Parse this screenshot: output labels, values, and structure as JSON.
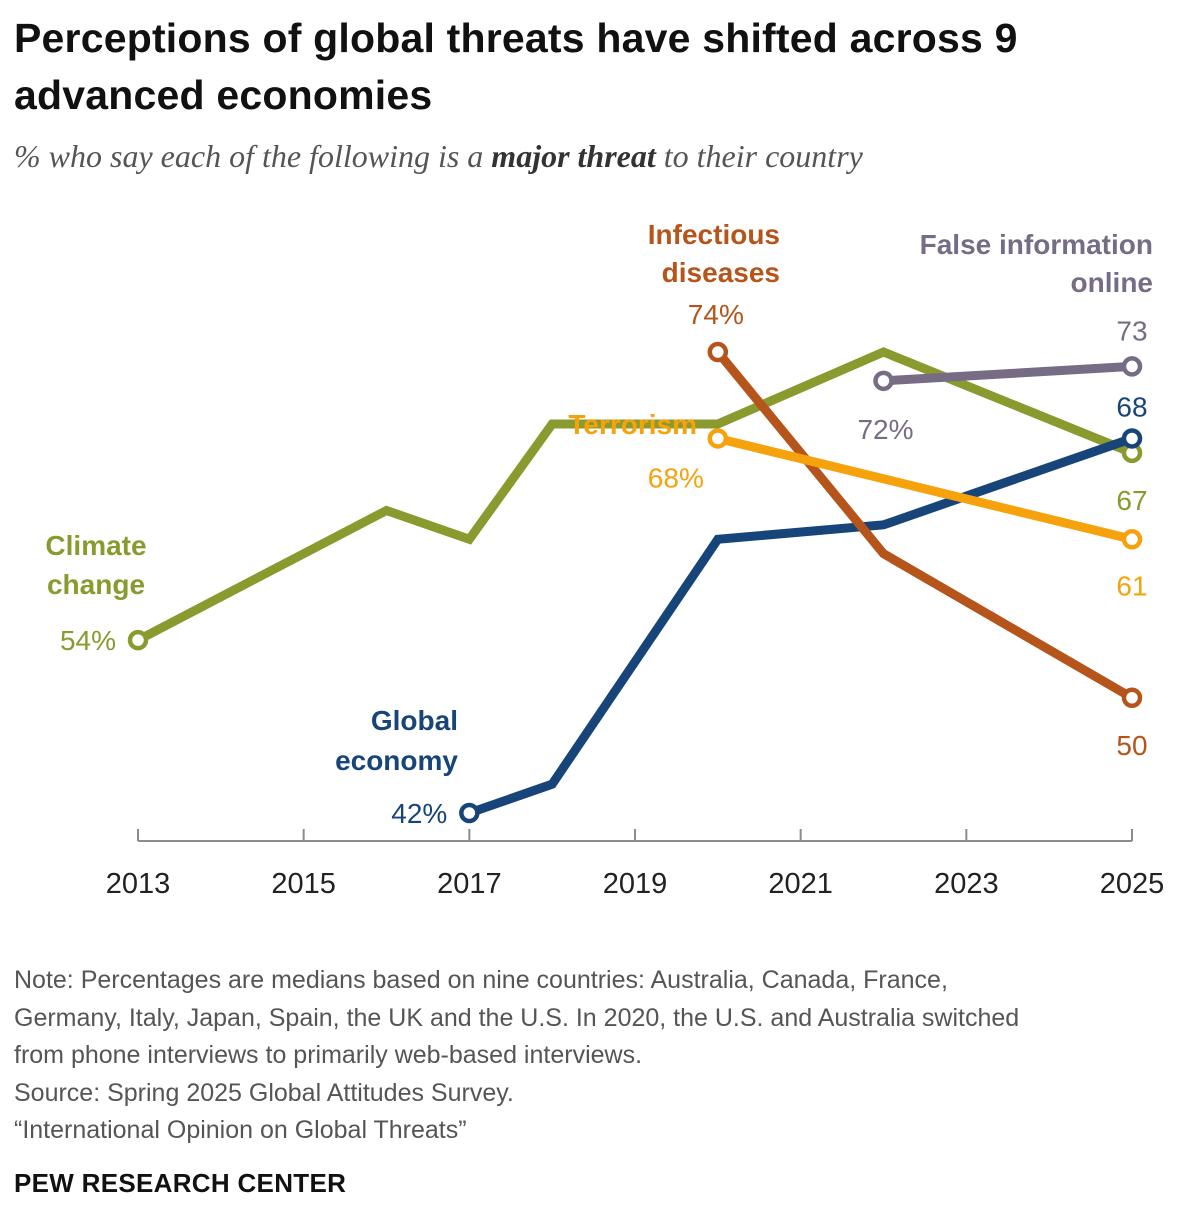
{
  "title": "Perceptions of global threats have shifted across 9 advanced economies",
  "subtitle": {
    "prefix": "% who say each of the following is a ",
    "emphasis": "major threat",
    "suffix": " to their country"
  },
  "chart_data": {
    "type": "line",
    "x_ticks": [
      2013,
      2015,
      2017,
      2019,
      2021,
      2023,
      2025
    ],
    "xlim": [
      2013,
      2025
    ],
    "ylim": [
      40,
      80
    ],
    "grid": false,
    "legend": "direct labels on lines",
    "series": [
      {
        "name": "Climate change",
        "name_lines": [
          "Climate",
          "change"
        ],
        "color": "#8a9a2e",
        "points": [
          [
            2013,
            54
          ],
          [
            2015,
            60
          ],
          [
            2016,
            63
          ],
          [
            2017,
            61
          ],
          [
            2018,
            69
          ],
          [
            2020,
            69
          ],
          [
            2022,
            74
          ],
          [
            2025,
            67
          ]
        ],
        "start_label": "54%",
        "end_label": "67",
        "marker_start": true,
        "marker_end": true
      },
      {
        "name": "Global economy",
        "name_lines": [
          "Global",
          "economy"
        ],
        "color": "#17457a",
        "points": [
          [
            2017,
            42
          ],
          [
            2018,
            44
          ],
          [
            2020,
            61
          ],
          [
            2022,
            62
          ],
          [
            2025,
            68
          ]
        ],
        "start_label": "42%",
        "end_label": "68",
        "marker_start": true,
        "marker_end": true
      },
      {
        "name": "Infectious diseases",
        "name_lines": [
          "Infectious",
          "diseases"
        ],
        "color": "#b5541b",
        "points": [
          [
            2020,
            74
          ],
          [
            2022,
            60
          ],
          [
            2025,
            50
          ]
        ],
        "start_label": "74%",
        "end_label": "50",
        "marker_start": true,
        "marker_end": true
      },
      {
        "name": "Terrorism",
        "name_lines": [
          "Terrorism"
        ],
        "color": "#f5a20c",
        "points": [
          [
            2020,
            68
          ],
          [
            2025,
            61
          ]
        ],
        "start_label": "68%",
        "end_label": "61",
        "marker_start": true,
        "marker_end": true
      },
      {
        "name": "False information online",
        "name_lines": [
          "False information",
          "online"
        ],
        "color": "#776c85",
        "points": [
          [
            2022,
            72
          ],
          [
            2025,
            73
          ]
        ],
        "start_label": "72%",
        "end_label": "73",
        "marker_start": true,
        "marker_end": true
      }
    ]
  },
  "note": [
    "Note: Percentages are medians based on nine countries: Australia, Canada, France,",
    "Germany, Italy, Japan, Spain, the UK and the U.S. In 2020, the U.S. and Australia switched",
    "from phone interviews to primarily web-based interviews.",
    "Source: Spring 2025 Global Attitudes Survey.",
    "“International Opinion on Global Threats”"
  ],
  "org": "PEW RESEARCH CENTER"
}
